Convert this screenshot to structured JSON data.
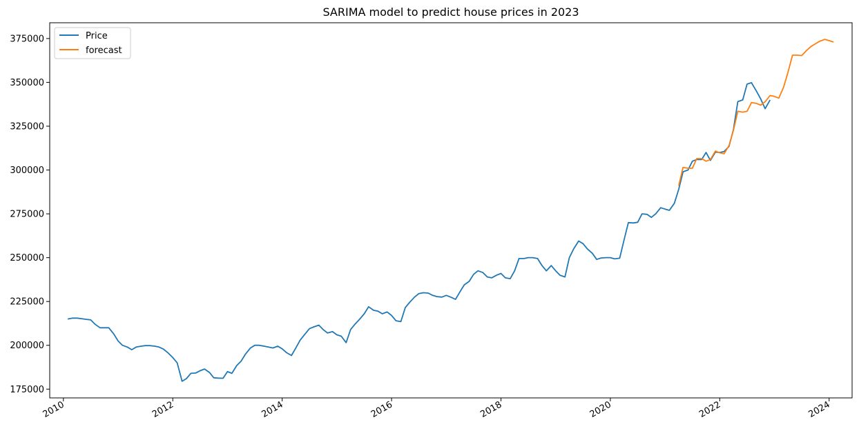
{
  "chart_data": {
    "type": "line",
    "title": "SARIMA model to predict house prices in 2023",
    "xlabel": "",
    "ylabel": "",
    "xlim": [
      2009.75,
      2024.42
    ],
    "ylim": [
      170000,
      384000
    ],
    "x_ticks": [
      2010,
      2012,
      2014,
      2016,
      2018,
      2020,
      2022,
      2024
    ],
    "x_tick_labels": [
      "2010",
      "2012",
      "2014",
      "2016",
      "2018",
      "2020",
      "2022",
      "2024"
    ],
    "y_ticks": [
      175000,
      200000,
      225000,
      250000,
      275000,
      300000,
      325000,
      350000,
      375000
    ],
    "y_tick_labels": [
      "175000",
      "200000",
      "225000",
      "250000",
      "275000",
      "300000",
      "325000",
      "350000",
      "375000"
    ],
    "legend_position": "top-left",
    "grid": false,
    "series": [
      {
        "name": "Price",
        "color": "#1f77b4",
        "points": [
          [
            2010.08,
            215000
          ],
          [
            2010.17,
            215500
          ],
          [
            2010.25,
            215500
          ],
          [
            2010.33,
            215200
          ],
          [
            2010.42,
            214800
          ],
          [
            2010.5,
            214500
          ],
          [
            2010.58,
            212000
          ],
          [
            2010.67,
            210000
          ],
          [
            2010.75,
            210000
          ],
          [
            2010.83,
            210000
          ],
          [
            2010.92,
            206500
          ],
          [
            2011.0,
            202500
          ],
          [
            2011.08,
            200000
          ],
          [
            2011.17,
            199000
          ],
          [
            2011.25,
            197500
          ],
          [
            2011.33,
            199000
          ],
          [
            2011.42,
            199500
          ],
          [
            2011.5,
            199800
          ],
          [
            2011.58,
            199800
          ],
          [
            2011.67,
            199500
          ],
          [
            2011.75,
            199000
          ],
          [
            2011.83,
            197800
          ],
          [
            2011.92,
            195500
          ],
          [
            2012.0,
            193000
          ],
          [
            2012.08,
            190000
          ],
          [
            2012.17,
            179500
          ],
          [
            2012.25,
            181000
          ],
          [
            2012.33,
            184000
          ],
          [
            2012.42,
            184200
          ],
          [
            2012.5,
            185500
          ],
          [
            2012.58,
            186500
          ],
          [
            2012.67,
            184500
          ],
          [
            2012.75,
            181500
          ],
          [
            2012.83,
            181300
          ],
          [
            2012.92,
            181200
          ],
          [
            2013.0,
            185000
          ],
          [
            2013.08,
            184000
          ],
          [
            2013.17,
            188500
          ],
          [
            2013.25,
            191000
          ],
          [
            2013.33,
            195000
          ],
          [
            2013.42,
            198500
          ],
          [
            2013.5,
            200000
          ],
          [
            2013.58,
            200000
          ],
          [
            2013.67,
            199500
          ],
          [
            2013.75,
            199000
          ],
          [
            2013.83,
            198500
          ],
          [
            2013.92,
            199500
          ],
          [
            2014.0,
            198000
          ],
          [
            2014.08,
            195800
          ],
          [
            2014.17,
            194200
          ],
          [
            2014.25,
            198500
          ],
          [
            2014.33,
            203000
          ],
          [
            2014.42,
            206500
          ],
          [
            2014.5,
            209500
          ],
          [
            2014.58,
            210500
          ],
          [
            2014.67,
            211500
          ],
          [
            2014.75,
            209000
          ],
          [
            2014.83,
            207000
          ],
          [
            2014.92,
            207800
          ],
          [
            2015.0,
            206000
          ],
          [
            2015.08,
            205200
          ],
          [
            2015.17,
            201500
          ],
          [
            2015.25,
            209000
          ],
          [
            2015.33,
            212000
          ],
          [
            2015.42,
            215000
          ],
          [
            2015.5,
            218000
          ],
          [
            2015.58,
            222000
          ],
          [
            2015.67,
            220000
          ],
          [
            2015.75,
            219500
          ],
          [
            2015.83,
            218000
          ],
          [
            2015.92,
            219000
          ],
          [
            2016.0,
            217000
          ],
          [
            2016.08,
            214000
          ],
          [
            2016.17,
            213500
          ],
          [
            2016.25,
            221500
          ],
          [
            2016.33,
            224500
          ],
          [
            2016.42,
            227500
          ],
          [
            2016.5,
            229500
          ],
          [
            2016.58,
            230000
          ],
          [
            2016.67,
            229800
          ],
          [
            2016.75,
            228500
          ],
          [
            2016.83,
            227800
          ],
          [
            2016.92,
            227500
          ],
          [
            2017.0,
            228500
          ],
          [
            2017.08,
            227500
          ],
          [
            2017.17,
            226200
          ],
          [
            2017.25,
            230500
          ],
          [
            2017.33,
            234500
          ],
          [
            2017.42,
            236500
          ],
          [
            2017.5,
            240500
          ],
          [
            2017.58,
            242500
          ],
          [
            2017.67,
            241500
          ],
          [
            2017.75,
            239000
          ],
          [
            2017.83,
            238500
          ],
          [
            2017.92,
            240000
          ],
          [
            2018.0,
            241000
          ],
          [
            2018.08,
            238500
          ],
          [
            2018.17,
            238000
          ],
          [
            2018.25,
            242500
          ],
          [
            2018.33,
            249500
          ],
          [
            2018.42,
            249500
          ],
          [
            2018.5,
            250000
          ],
          [
            2018.58,
            250000
          ],
          [
            2018.67,
            249500
          ],
          [
            2018.75,
            245500
          ],
          [
            2018.83,
            242500
          ],
          [
            2018.92,
            245500
          ],
          [
            2019.0,
            242500
          ],
          [
            2019.08,
            240000
          ],
          [
            2019.17,
            239000
          ],
          [
            2019.25,
            250000
          ],
          [
            2019.33,
            255000
          ],
          [
            2019.42,
            259500
          ],
          [
            2019.5,
            258000
          ],
          [
            2019.58,
            255000
          ],
          [
            2019.67,
            252500
          ],
          [
            2019.75,
            249000
          ],
          [
            2019.83,
            249800
          ],
          [
            2019.92,
            250000
          ],
          [
            2020.0,
            250000
          ],
          [
            2020.08,
            249300
          ],
          [
            2020.17,
            249700
          ],
          [
            2020.25,
            260000
          ],
          [
            2020.33,
            270000
          ],
          [
            2020.42,
            269800
          ],
          [
            2020.5,
            270200
          ],
          [
            2020.58,
            275000
          ],
          [
            2020.67,
            274700
          ],
          [
            2020.75,
            273000
          ],
          [
            2020.83,
            275000
          ],
          [
            2020.92,
            278500
          ],
          [
            2021.0,
            277700
          ],
          [
            2021.08,
            277000
          ],
          [
            2021.17,
            281000
          ],
          [
            2021.25,
            289000
          ],
          [
            2021.33,
            299000
          ],
          [
            2021.42,
            300000
          ],
          [
            2021.5,
            305000
          ],
          [
            2021.58,
            306000
          ],
          [
            2021.67,
            306000
          ],
          [
            2021.75,
            310000
          ],
          [
            2021.83,
            305500
          ],
          [
            2021.92,
            310200
          ],
          [
            2022.0,
            310000
          ],
          [
            2022.08,
            310500
          ],
          [
            2022.17,
            313500
          ],
          [
            2022.25,
            323000
          ],
          [
            2022.33,
            339000
          ],
          [
            2022.42,
            340000
          ],
          [
            2022.5,
            349000
          ],
          [
            2022.58,
            349800
          ],
          [
            2022.67,
            345000
          ],
          [
            2022.75,
            340500
          ],
          [
            2022.83,
            335000
          ],
          [
            2022.92,
            340000
          ]
        ]
      },
      {
        "name": "forecast",
        "color": "#ff7f0e",
        "points": [
          [
            2021.25,
            291000
          ],
          [
            2021.33,
            301500
          ],
          [
            2021.42,
            301000
          ],
          [
            2021.5,
            301000
          ],
          [
            2021.58,
            306500
          ],
          [
            2021.67,
            306500
          ],
          [
            2021.75,
            305000
          ],
          [
            2021.83,
            306000
          ],
          [
            2021.92,
            310800
          ],
          [
            2022.0,
            309800
          ],
          [
            2022.08,
            309300
          ],
          [
            2022.17,
            314000
          ],
          [
            2022.25,
            322500
          ],
          [
            2022.33,
            333500
          ],
          [
            2022.42,
            333000
          ],
          [
            2022.5,
            333500
          ],
          [
            2022.58,
            338500
          ],
          [
            2022.67,
            338000
          ],
          [
            2022.75,
            337000
          ],
          [
            2022.83,
            339000
          ],
          [
            2022.92,
            342500
          ],
          [
            2023.0,
            342000
          ],
          [
            2023.08,
            341000
          ],
          [
            2023.17,
            347500
          ],
          [
            2023.25,
            356000
          ],
          [
            2023.33,
            365500
          ],
          [
            2023.42,
            365500
          ],
          [
            2023.5,
            365300
          ],
          [
            2023.58,
            368000
          ],
          [
            2023.67,
            370500
          ],
          [
            2023.75,
            372000
          ],
          [
            2023.83,
            373500
          ],
          [
            2023.92,
            374500
          ],
          [
            2024.0,
            373800
          ],
          [
            2024.08,
            373000
          ]
        ]
      }
    ]
  }
}
